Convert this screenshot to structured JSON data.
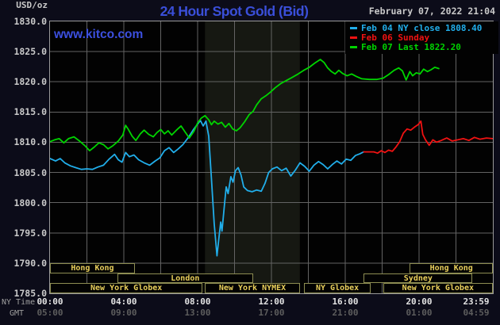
{
  "header": {
    "units_label": "USD/oz",
    "title": "24 Hour Spot Gold (Bid)",
    "date": "February 07, 2022 21:04",
    "watermark": "www.kitco.com"
  },
  "colors": {
    "background": "#0c0c19",
    "plot_background": "#020202",
    "nymex_band": "#161812",
    "grid": "#636363",
    "plot_border": "#9a9a9a",
    "title_blue": "#3a4fd9",
    "watermark_blue": "#3c50e0",
    "gray_text": "#c9c9c9",
    "cyan_series": "#21aeea",
    "red_series": "#f01212",
    "green_series": "#00d400",
    "session_border": "#8d8d52",
    "session_text": "#e9cf5b"
  },
  "legend": {
    "items": [
      {
        "id": "feb04",
        "label": "Feb 04 NY close 1808.40",
        "color": "#21aeea"
      },
      {
        "id": "feb06",
        "label": "Feb 06 Sunday",
        "color": "#f01212"
      },
      {
        "id": "feb07",
        "label": "Feb 07 Last 1822.20",
        "color": "#00d400"
      }
    ]
  },
  "axis": {
    "ny_caption": "NY Time",
    "gmt_caption": "GMT"
  },
  "chart_data": {
    "type": "line",
    "title": "24 Hour Spot Gold (Bid)",
    "ylabel": "USD/oz",
    "ylim": [
      1785,
      1830
    ],
    "xlim_hours": [
      0,
      24
    ],
    "grid": true,
    "legend_position": "top-right",
    "y_ticks": [
      "1830.0",
      "1825.0",
      "1820.0",
      "1815.0",
      "1810.0",
      "1805.0",
      "1800.0",
      "1795.0",
      "1790.0",
      "1785.0"
    ],
    "x_ticks": [
      {
        "t": 0,
        "ny": "00:00",
        "gmt": "05:00"
      },
      {
        "t": 4,
        "ny": "04:00",
        "gmt": "09:00"
      },
      {
        "t": 8,
        "ny": "08:00",
        "gmt": "13:00"
      },
      {
        "t": 12,
        "ny": "12:00",
        "gmt": "17:00"
      },
      {
        "t": 16,
        "ny": "16:00",
        "gmt": "21:00"
      },
      {
        "t": 20,
        "ny": "20:00",
        "gmt": "01:00"
      },
      {
        "t": 23.983,
        "ny": "23:59",
        "gmt": "04:59"
      }
    ],
    "nymex_band": {
      "t0": 8.4,
      "t1": 13.54
    },
    "sessions": [
      {
        "row": 0,
        "t0": 0,
        "t1": 4.6,
        "label": "Hong Kong"
      },
      {
        "row": 0,
        "t0": 19.5,
        "t1": 24,
        "label": "Hong Kong"
      },
      {
        "row": 1,
        "t0": 3.65,
        "t1": 11.0,
        "label": "London"
      },
      {
        "row": 1,
        "t0": 17.0,
        "t1": 22.9,
        "label": "Sydney"
      },
      {
        "row": 2,
        "t0": 0,
        "t1": 8.27,
        "label": "New York Globex"
      },
      {
        "row": 2,
        "t0": 8.4,
        "t1": 13.54,
        "label": "New York NYMEX"
      },
      {
        "row": 2,
        "t0": 13.75,
        "t1": 17.4,
        "label": "NY Globex"
      },
      {
        "row": 2,
        "t0": 18.05,
        "t1": 24,
        "label": "New York Globex"
      }
    ],
    "series": [
      {
        "id": "feb04-ny-close",
        "name": "Feb 04 NY close 1808.40",
        "color": "#21aeea",
        "last_value": 1808.4,
        "points": [
          [
            0,
            1807.3
          ],
          [
            0.3,
            1806.9
          ],
          [
            0.55,
            1807.3
          ],
          [
            0.8,
            1806.6
          ],
          [
            1.1,
            1806.1
          ],
          [
            1.4,
            1805.8
          ],
          [
            1.7,
            1805.5
          ],
          [
            2.0,
            1805.6
          ],
          [
            2.3,
            1805.5
          ],
          [
            2.6,
            1805.9
          ],
          [
            2.9,
            1806.2
          ],
          [
            3.2,
            1807.2
          ],
          [
            3.5,
            1808.0
          ],
          [
            3.7,
            1807.1
          ],
          [
            3.9,
            1806.7
          ],
          [
            4.1,
            1808.3
          ],
          [
            4.3,
            1807.6
          ],
          [
            4.55,
            1807.9
          ],
          [
            4.8,
            1807.1
          ],
          [
            5.1,
            1806.6
          ],
          [
            5.4,
            1806.2
          ],
          [
            5.7,
            1806.9
          ],
          [
            5.95,
            1807.4
          ],
          [
            6.2,
            1808.6
          ],
          [
            6.45,
            1809.1
          ],
          [
            6.7,
            1808.3
          ],
          [
            6.95,
            1808.9
          ],
          [
            7.2,
            1809.6
          ],
          [
            7.5,
            1810.8
          ],
          [
            7.75,
            1812.0
          ],
          [
            7.95,
            1812.8
          ],
          [
            8.15,
            1813.6
          ],
          [
            8.3,
            1812.7
          ],
          [
            8.45,
            1813.5
          ],
          [
            8.6,
            1811.0
          ],
          [
            8.75,
            1804.0
          ],
          [
            8.9,
            1796.5
          ],
          [
            9.05,
            1791.2
          ],
          [
            9.15,
            1794.0
          ],
          [
            9.25,
            1796.8
          ],
          [
            9.32,
            1795.3
          ],
          [
            9.45,
            1799.5
          ],
          [
            9.55,
            1802.6
          ],
          [
            9.65,
            1801.5
          ],
          [
            9.8,
            1804.3
          ],
          [
            9.92,
            1803.4
          ],
          [
            10.05,
            1805.3
          ],
          [
            10.2,
            1805.8
          ],
          [
            10.35,
            1804.6
          ],
          [
            10.5,
            1802.6
          ],
          [
            10.7,
            1802.0
          ],
          [
            10.95,
            1801.8
          ],
          [
            11.2,
            1802.1
          ],
          [
            11.45,
            1801.9
          ],
          [
            11.65,
            1803.2
          ],
          [
            11.85,
            1805.0
          ],
          [
            12.05,
            1805.6
          ],
          [
            12.3,
            1805.9
          ],
          [
            12.55,
            1805.3
          ],
          [
            12.8,
            1805.7
          ],
          [
            13.05,
            1804.4
          ],
          [
            13.3,
            1805.4
          ],
          [
            13.55,
            1806.6
          ],
          [
            13.8,
            1806.0
          ],
          [
            14.05,
            1805.2
          ],
          [
            14.3,
            1806.2
          ],
          [
            14.55,
            1806.8
          ],
          [
            14.8,
            1806.3
          ],
          [
            15.05,
            1805.6
          ],
          [
            15.3,
            1806.3
          ],
          [
            15.55,
            1806.9
          ],
          [
            15.8,
            1806.4
          ],
          [
            16.05,
            1807.2
          ],
          [
            16.3,
            1807.0
          ],
          [
            16.55,
            1807.8
          ],
          [
            16.8,
            1808.1
          ],
          [
            17.0,
            1808.4
          ]
        ]
      },
      {
        "id": "feb06-sunday",
        "name": "Feb 06 Sunday",
        "color": "#f01212",
        "points": [
          [
            17.0,
            1808.4
          ],
          [
            17.55,
            1808.4
          ],
          [
            17.75,
            1808.2
          ],
          [
            17.95,
            1808.6
          ],
          [
            18.15,
            1808.3
          ],
          [
            18.35,
            1808.7
          ],
          [
            18.55,
            1808.5
          ],
          [
            18.75,
            1809.2
          ],
          [
            18.95,
            1810.1
          ],
          [
            19.15,
            1811.5
          ],
          [
            19.35,
            1812.2
          ],
          [
            19.55,
            1812.0
          ],
          [
            19.75,
            1812.5
          ],
          [
            19.95,
            1812.9
          ],
          [
            20.1,
            1813.5
          ],
          [
            20.2,
            1811.3
          ],
          [
            20.35,
            1810.4
          ],
          [
            20.55,
            1809.5
          ],
          [
            20.75,
            1810.4
          ],
          [
            20.95,
            1810.0
          ],
          [
            21.2,
            1810.3
          ],
          [
            21.5,
            1810.7
          ],
          [
            21.8,
            1810.2
          ],
          [
            22.1,
            1810.4
          ],
          [
            22.4,
            1810.6
          ],
          [
            22.7,
            1810.3
          ],
          [
            23.0,
            1810.8
          ],
          [
            23.3,
            1810.5
          ],
          [
            23.65,
            1810.7
          ],
          [
            24.0,
            1810.6
          ]
        ]
      },
      {
        "id": "feb07-last",
        "name": "Feb 07 Last 1822.20",
        "color": "#00d400",
        "last_value": 1822.2,
        "points": [
          [
            0,
            1810.1
          ],
          [
            0.25,
            1810.4
          ],
          [
            0.5,
            1810.6
          ],
          [
            0.75,
            1809.9
          ],
          [
            1.0,
            1810.6
          ],
          [
            1.3,
            1810.9
          ],
          [
            1.6,
            1810.2
          ],
          [
            1.9,
            1809.4
          ],
          [
            2.15,
            1808.6
          ],
          [
            2.4,
            1809.2
          ],
          [
            2.65,
            1809.9
          ],
          [
            2.9,
            1809.6
          ],
          [
            3.15,
            1808.9
          ],
          [
            3.4,
            1809.4
          ],
          [
            3.7,
            1810.2
          ],
          [
            3.95,
            1811.2
          ],
          [
            4.1,
            1812.8
          ],
          [
            4.25,
            1812.1
          ],
          [
            4.45,
            1811.0
          ],
          [
            4.65,
            1810.3
          ],
          [
            4.9,
            1811.4
          ],
          [
            5.1,
            1812.0
          ],
          [
            5.35,
            1811.3
          ],
          [
            5.6,
            1810.9
          ],
          [
            5.8,
            1811.6
          ],
          [
            6.0,
            1812.1
          ],
          [
            6.2,
            1811.4
          ],
          [
            6.4,
            1811.9
          ],
          [
            6.6,
            1811.2
          ],
          [
            6.85,
            1812.0
          ],
          [
            7.1,
            1812.7
          ],
          [
            7.3,
            1811.8
          ],
          [
            7.55,
            1810.7
          ],
          [
            7.8,
            1811.8
          ],
          [
            8.0,
            1813.2
          ],
          [
            8.2,
            1814.0
          ],
          [
            8.4,
            1814.4
          ],
          [
            8.6,
            1813.7
          ],
          [
            8.75,
            1812.9
          ],
          [
            8.9,
            1813.5
          ],
          [
            9.1,
            1813.0
          ],
          [
            9.3,
            1813.3
          ],
          [
            9.5,
            1812.5
          ],
          [
            9.7,
            1813.1
          ],
          [
            9.9,
            1812.2
          ],
          [
            10.1,
            1811.9
          ],
          [
            10.3,
            1812.4
          ],
          [
            10.55,
            1813.4
          ],
          [
            10.8,
            1814.6
          ],
          [
            11.0,
            1815.1
          ],
          [
            11.2,
            1816.2
          ],
          [
            11.45,
            1817.2
          ],
          [
            11.7,
            1817.7
          ],
          [
            11.95,
            1818.3
          ],
          [
            12.2,
            1819.0
          ],
          [
            12.5,
            1819.7
          ],
          [
            12.8,
            1820.2
          ],
          [
            13.1,
            1820.7
          ],
          [
            13.45,
            1821.3
          ],
          [
            13.75,
            1821.9
          ],
          [
            14.05,
            1822.4
          ],
          [
            14.35,
            1823.1
          ],
          [
            14.65,
            1823.7
          ],
          [
            14.85,
            1823.2
          ],
          [
            15.05,
            1822.3
          ],
          [
            15.25,
            1821.7
          ],
          [
            15.45,
            1821.3
          ],
          [
            15.65,
            1821.9
          ],
          [
            15.85,
            1821.4
          ],
          [
            16.1,
            1821.0
          ],
          [
            16.35,
            1821.3
          ],
          [
            16.6,
            1820.9
          ],
          [
            16.9,
            1820.5
          ],
          [
            17.3,
            1820.4
          ],
          [
            17.7,
            1820.4
          ],
          [
            18.05,
            1820.6
          ],
          [
            18.35,
            1821.2
          ],
          [
            18.65,
            1821.9
          ],
          [
            18.9,
            1822.3
          ],
          [
            19.1,
            1821.8
          ],
          [
            19.3,
            1820.3
          ],
          [
            19.5,
            1821.7
          ],
          [
            19.65,
            1821.0
          ],
          [
            19.85,
            1821.5
          ],
          [
            20.05,
            1821.3
          ],
          [
            20.25,
            1822.1
          ],
          [
            20.45,
            1821.7
          ],
          [
            20.65,
            1822.0
          ],
          [
            20.85,
            1822.4
          ],
          [
            21.07,
            1822.2
          ]
        ]
      }
    ]
  }
}
